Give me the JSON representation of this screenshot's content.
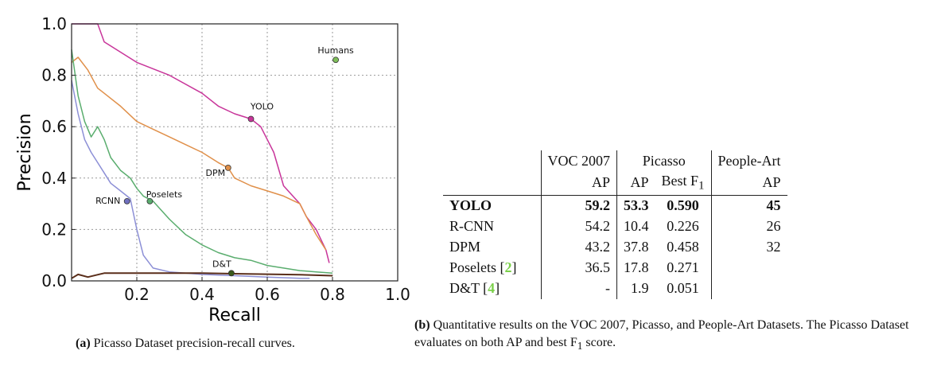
{
  "chart_data": {
    "type": "line",
    "xlabel": "Recall",
    "ylabel": "Precision",
    "xlim": [
      0,
      1.0
    ],
    "ylim": [
      0,
      1.0
    ],
    "xticks": [
      "0.2",
      "0.4",
      "0.6",
      "0.8",
      "1.0"
    ],
    "yticks": [
      "0.0",
      "0.2",
      "0.4",
      "0.6",
      "0.8",
      "1.0"
    ],
    "xtick_values": [
      0.2,
      0.4,
      0.6,
      0.8,
      1.0
    ],
    "ytick_values": [
      0.0,
      0.2,
      0.4,
      0.6,
      0.8,
      1.0
    ],
    "grid": true,
    "series": [
      {
        "name": "YOLO",
        "color": "#c8359a",
        "x": [
          0.0,
          0.02,
          0.05,
          0.08,
          0.1,
          0.15,
          0.2,
          0.3,
          0.4,
          0.45,
          0.5,
          0.55,
          0.58,
          0.6,
          0.62,
          0.65,
          0.7,
          0.72,
          0.75,
          0.78,
          0.79
        ],
        "y": [
          1.0,
          1.0,
          1.0,
          1.0,
          0.93,
          0.89,
          0.85,
          0.8,
          0.73,
          0.68,
          0.65,
          0.63,
          0.6,
          0.55,
          0.5,
          0.37,
          0.3,
          0.25,
          0.2,
          0.12,
          0.07
        ]
      },
      {
        "name": "DPM",
        "color": "#e0904a",
        "x": [
          0.0,
          0.02,
          0.05,
          0.08,
          0.1,
          0.15,
          0.2,
          0.25,
          0.3,
          0.35,
          0.4,
          0.45,
          0.48,
          0.5,
          0.55,
          0.6,
          0.65,
          0.7,
          0.72,
          0.75,
          0.78
        ],
        "y": [
          0.85,
          0.87,
          0.82,
          0.75,
          0.73,
          0.68,
          0.62,
          0.59,
          0.56,
          0.53,
          0.5,
          0.46,
          0.44,
          0.4,
          0.37,
          0.35,
          0.33,
          0.3,
          0.25,
          0.18,
          0.12
        ]
      },
      {
        "name": "Poselets",
        "color": "#5aad6e",
        "x": [
          0.0,
          0.02,
          0.04,
          0.06,
          0.08,
          0.1,
          0.12,
          0.15,
          0.18,
          0.2,
          0.22,
          0.25,
          0.3,
          0.35,
          0.4,
          0.45,
          0.5,
          0.55,
          0.6,
          0.65,
          0.7,
          0.75,
          0.8
        ],
        "y": [
          0.9,
          0.72,
          0.62,
          0.56,
          0.6,
          0.55,
          0.48,
          0.43,
          0.4,
          0.36,
          0.33,
          0.31,
          0.24,
          0.18,
          0.14,
          0.11,
          0.09,
          0.08,
          0.06,
          0.05,
          0.04,
          0.035,
          0.03
        ]
      },
      {
        "name": "RCNN",
        "color": "#8c8fd6",
        "x": [
          0.0,
          0.02,
          0.04,
          0.06,
          0.08,
          0.1,
          0.12,
          0.15,
          0.18,
          0.2,
          0.22,
          0.25,
          0.3,
          0.35,
          0.4,
          0.5,
          0.6,
          0.7,
          0.73
        ],
        "y": [
          0.78,
          0.65,
          0.55,
          0.5,
          0.46,
          0.42,
          0.38,
          0.35,
          0.32,
          0.2,
          0.1,
          0.05,
          0.035,
          0.03,
          0.025,
          0.02,
          0.015,
          0.01,
          0.01
        ]
      },
      {
        "name": "D&T",
        "color": "#5a2e1a",
        "x": [
          0.0,
          0.02,
          0.05,
          0.1,
          0.2,
          0.3,
          0.4,
          0.5,
          0.6,
          0.7,
          0.8
        ],
        "y": [
          0.01,
          0.025,
          0.015,
          0.03,
          0.03,
          0.03,
          0.03,
          0.028,
          0.026,
          0.024,
          0.02
        ]
      }
    ],
    "points": [
      {
        "label": "Humans",
        "x": 0.81,
        "y": 0.86,
        "color": "#7fbf5a"
      },
      {
        "label": "YOLO",
        "x": 0.55,
        "y": 0.63,
        "color": "#c8359a"
      },
      {
        "label": "DPM",
        "x": 0.48,
        "y": 0.44,
        "color": "#e0904a"
      },
      {
        "label": "Poselets",
        "x": 0.24,
        "y": 0.31,
        "color": "#5aad6e"
      },
      {
        "label": "RCNN",
        "x": 0.17,
        "y": 0.31,
        "color": "#7070c0"
      },
      {
        "label": "D&T",
        "x": 0.49,
        "y": 0.03,
        "color": "#3a5a1a"
      }
    ]
  },
  "caption_a": {
    "prefix": "(a)",
    "text": " Picasso Dataset precision-recall curves."
  },
  "caption_b": {
    "prefix": "(b)",
    "text": " Quantitative results on the VOC 2007, Picasso, and People-Art Datasets. The Picasso Dataset evaluates on both AP and best F",
    "sub": "1",
    "suffix": " score."
  },
  "table": {
    "group_headers": {
      "voc": "VOC 2007",
      "picasso": "Picasso",
      "peopleart": "People-Art"
    },
    "col_headers": {
      "voc_ap": "AP",
      "picasso_ap": "AP",
      "best_f": "Best F",
      "best_f_sub": "1",
      "peopleart_ap": "AP"
    },
    "rows": [
      {
        "name": "YOLO",
        "cite": "",
        "voc": "59.2",
        "picasso_ap": "53.3",
        "f1": "0.590",
        "peopleart": "45",
        "bold": true
      },
      {
        "name": "R-CNN",
        "cite": "",
        "voc": "54.2",
        "picasso_ap": "10.4",
        "f1": "0.226",
        "peopleart": "26",
        "bold": false
      },
      {
        "name": "DPM",
        "cite": "",
        "voc": "43.2",
        "picasso_ap": "37.8",
        "f1": "0.458",
        "peopleart": "32",
        "bold": false
      },
      {
        "name": "Poselets",
        "cite": "2",
        "voc": "36.5",
        "picasso_ap": "17.8",
        "f1": "0.271",
        "peopleart": "",
        "bold": false
      },
      {
        "name": "D&T",
        "cite": "4",
        "voc": "-",
        "picasso_ap": "1.9",
        "f1": "0.051",
        "peopleart": "",
        "bold": false
      }
    ]
  }
}
